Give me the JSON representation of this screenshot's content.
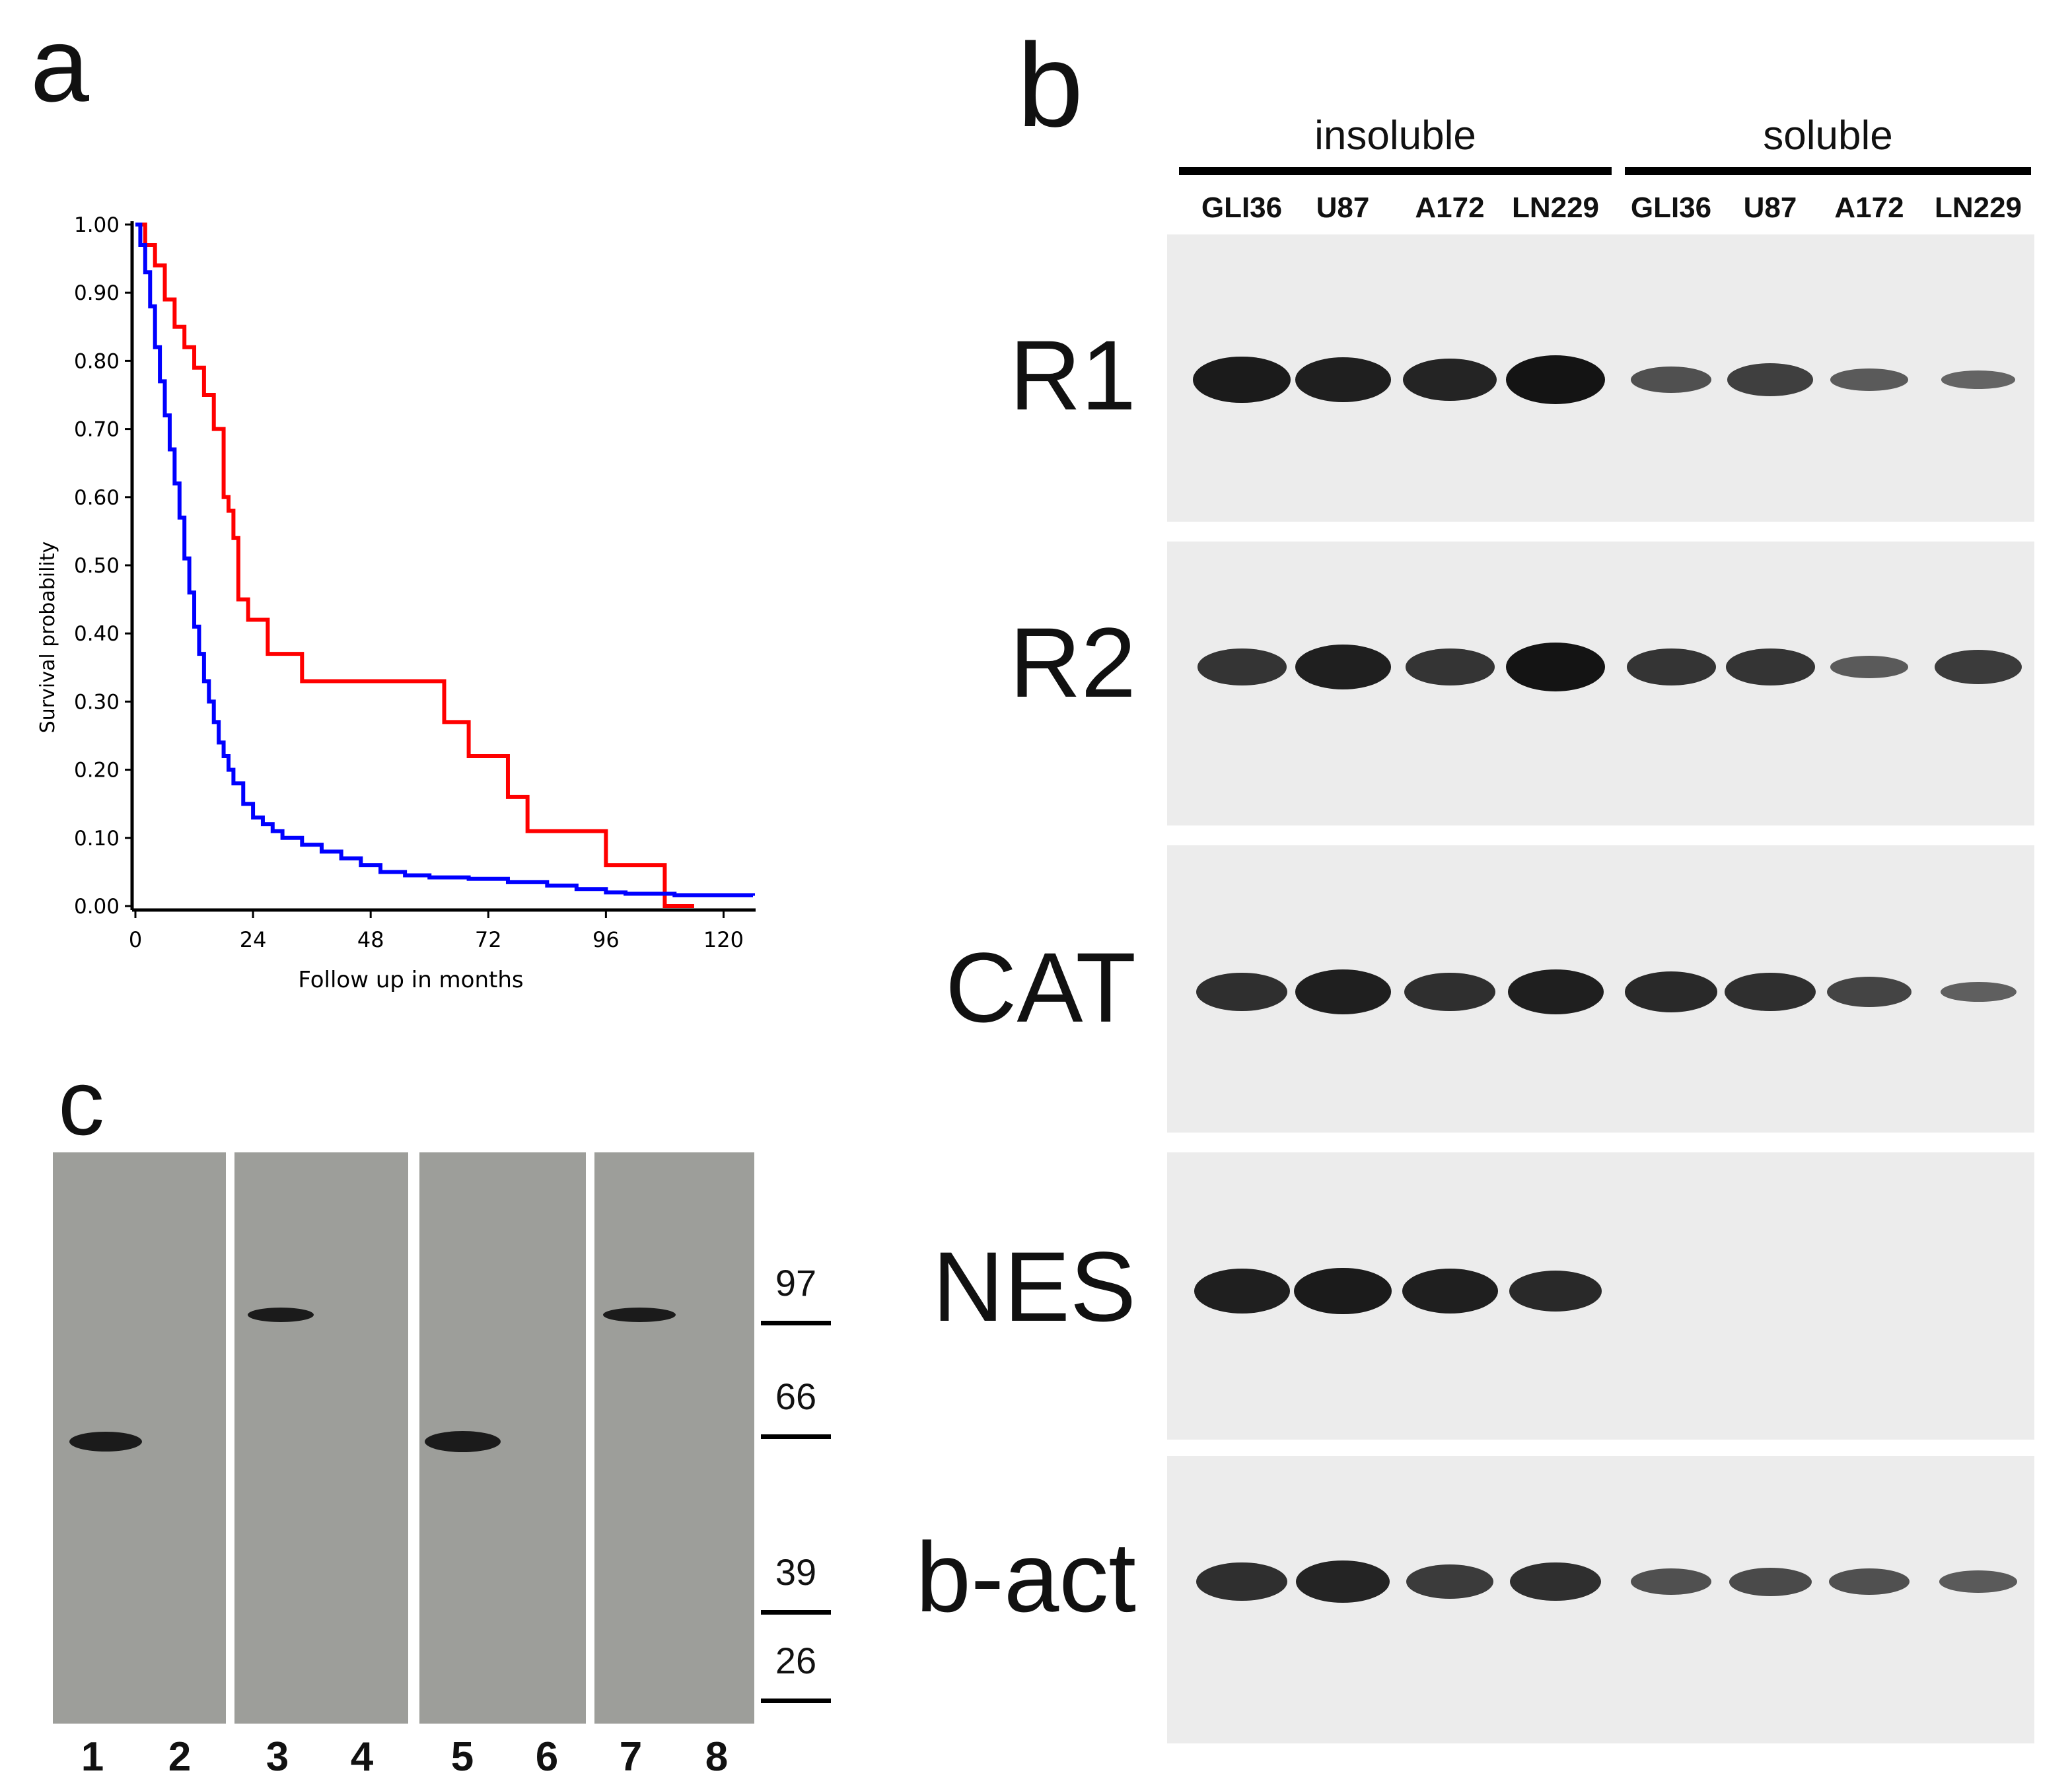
{
  "panels": {
    "a": {
      "letter": "a"
    },
    "b": {
      "letter": "b"
    },
    "c": {
      "letter": "c"
    }
  },
  "chart_data": {
    "type": "line",
    "title": "",
    "xlabel": "Follow up in months",
    "ylabel": "Survival probability",
    "xlim": [
      0,
      126
    ],
    "ylim": [
      0,
      1.0
    ],
    "xticks": [
      "0",
      "24",
      "48",
      "72",
      "96",
      "120"
    ],
    "yticks": [
      "0.00",
      "0.10",
      "0.20",
      "0.30",
      "0.40",
      "0.50",
      "0.60",
      "0.70",
      "0.80",
      "0.90",
      "1.00"
    ],
    "grid": false,
    "legend": "none",
    "series": [
      {
        "color": "#ff0000",
        "step": true,
        "x": [
          0,
          2,
          4,
          6,
          8,
          10,
          12,
          14,
          16,
          18,
          19,
          20,
          21,
          23,
          27,
          34,
          58,
          63,
          68,
          72,
          76,
          80,
          92,
          96,
          105,
          108,
          114
        ],
        "y": [
          1.0,
          0.97,
          0.94,
          0.89,
          0.85,
          0.82,
          0.79,
          0.75,
          0.7,
          0.6,
          0.58,
          0.54,
          0.45,
          0.42,
          0.37,
          0.33,
          0.33,
          0.27,
          0.22,
          0.22,
          0.16,
          0.11,
          0.11,
          0.06,
          0.06,
          0.0,
          0.0
        ]
      },
      {
        "color": "#0000ff",
        "step": true,
        "x": [
          0,
          1,
          2,
          3,
          4,
          5,
          6,
          7,
          8,
          9,
          10,
          11,
          12,
          13,
          14,
          15,
          16,
          17,
          18,
          19,
          20,
          22,
          24,
          26,
          28,
          30,
          34,
          38,
          42,
          46,
          50,
          55,
          60,
          68,
          76,
          84,
          90,
          96,
          100,
          110,
          126
        ],
        "y": [
          1.0,
          0.97,
          0.93,
          0.88,
          0.82,
          0.77,
          0.72,
          0.67,
          0.62,
          0.57,
          0.51,
          0.46,
          0.41,
          0.37,
          0.33,
          0.3,
          0.27,
          0.24,
          0.22,
          0.2,
          0.18,
          0.15,
          0.13,
          0.12,
          0.11,
          0.1,
          0.09,
          0.08,
          0.07,
          0.06,
          0.05,
          0.045,
          0.042,
          0.04,
          0.035,
          0.03,
          0.025,
          0.02,
          0.018,
          0.016,
          0.015
        ]
      }
    ]
  },
  "blot": {
    "groups": [
      "insoluble",
      "soluble"
    ],
    "lanes": [
      "GLI36",
      "U87",
      "A172",
      "LN229",
      "GLI36",
      "U87",
      "A172",
      "LN229"
    ],
    "rows": [
      {
        "label": "R1",
        "intensity": [
          0.95,
          0.9,
          0.85,
          1.0,
          0.45,
          0.6,
          0.35,
          0.25
        ]
      },
      {
        "label": "R2",
        "intensity": [
          0.7,
          0.9,
          0.7,
          1.0,
          0.7,
          0.7,
          0.35,
          0.65
        ]
      },
      {
        "label": "CAT",
        "intensity": [
          0.75,
          0.9,
          0.75,
          0.9,
          0.8,
          0.75,
          0.55,
          0.3
        ]
      },
      {
        "label": "NES",
        "intensity": [
          0.9,
          0.95,
          0.9,
          0.8,
          0,
          0,
          0,
          0
        ]
      },
      {
        "label": "b-act",
        "intensity": [
          0.75,
          0.85,
          0.65,
          0.75,
          0.45,
          0.5,
          0.45,
          0.35
        ]
      }
    ]
  },
  "gel_c": {
    "markers": [
      "97",
      "66",
      "39",
      "26"
    ],
    "lanes": [
      "1",
      "2",
      "3",
      "4",
      "5",
      "6",
      "7",
      "8"
    ]
  }
}
